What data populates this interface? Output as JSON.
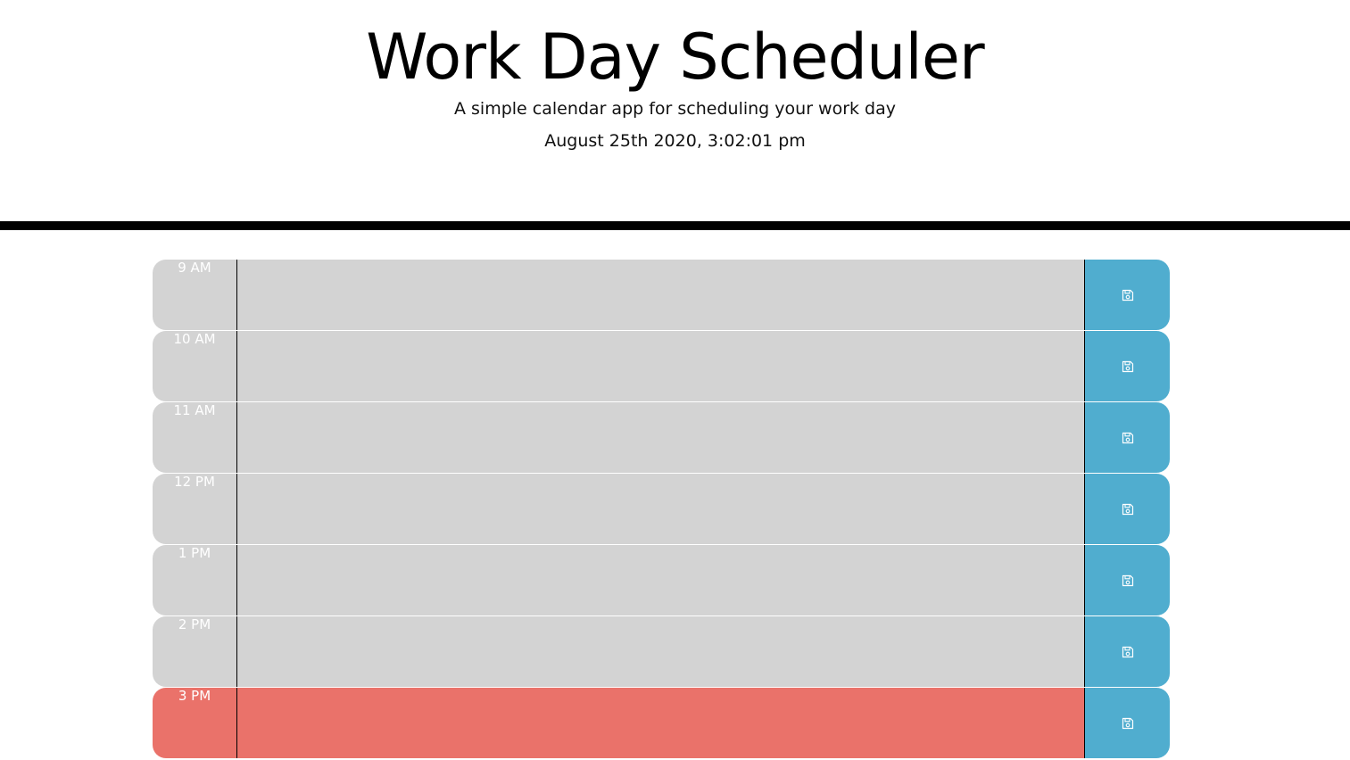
{
  "header": {
    "title": "Work Day Scheduler",
    "lead": "A simple calendar app for scheduling your work day",
    "current_day": "August 25th 2020, 3:02:01 pm"
  },
  "colors": {
    "past": "#d3d3d3",
    "present": "#ea726a",
    "save_button": "#50adcf"
  },
  "time_blocks": [
    {
      "hour": "9 AM",
      "status": "past",
      "description": "",
      "save_icon": "floppy-disk-icon"
    },
    {
      "hour": "10 AM",
      "status": "past",
      "description": "",
      "save_icon": "floppy-disk-icon"
    },
    {
      "hour": "11 AM",
      "status": "past",
      "description": "",
      "save_icon": "floppy-disk-icon"
    },
    {
      "hour": "12 PM",
      "status": "past",
      "description": "",
      "save_icon": "floppy-disk-icon"
    },
    {
      "hour": "1 PM",
      "status": "past",
      "description": "",
      "save_icon": "floppy-disk-icon"
    },
    {
      "hour": "2 PM",
      "status": "past",
      "description": "",
      "save_icon": "floppy-disk-icon"
    },
    {
      "hour": "3 PM",
      "status": "present",
      "description": "",
      "save_icon": "floppy-disk-icon"
    }
  ]
}
